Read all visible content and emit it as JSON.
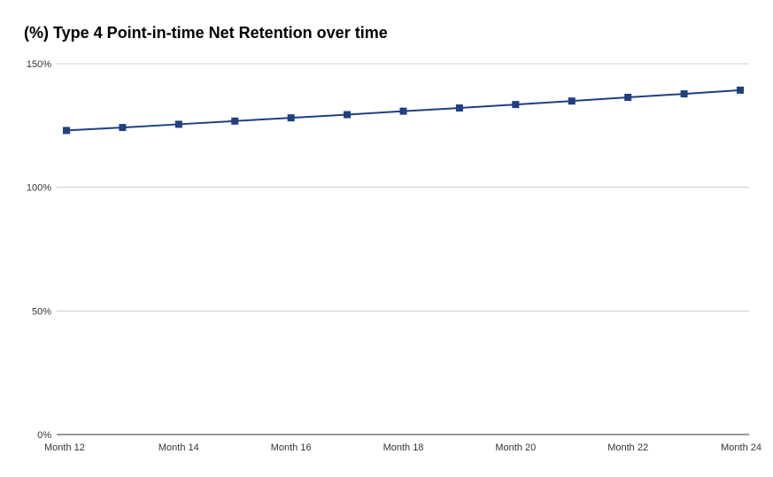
{
  "chart_data": {
    "type": "line",
    "title": "(%) Type 4 Point-in-time Net Retention over time",
    "xlabel": "",
    "ylabel": "",
    "ylim": [
      0,
      150
    ],
    "y_ticks": [
      {
        "value": 0,
        "label": "0%"
      },
      {
        "value": 50,
        "label": "50%"
      },
      {
        "value": 100,
        "label": "100%"
      },
      {
        "value": 150,
        "label": "150%"
      }
    ],
    "categories": [
      "Month 12",
      "Month 13",
      "Month 14",
      "Month 15",
      "Month 16",
      "Month 17",
      "Month 18",
      "Month 19",
      "Month 20",
      "Month 21",
      "Month 22",
      "Month 23",
      "Month 24"
    ],
    "x_tick_labels": [
      "Month 12",
      "Month 14",
      "Month 16",
      "Month 18",
      "Month 20",
      "Month 22",
      "Month 24"
    ],
    "series": [
      {
        "values": [
          123.0,
          124.2,
          125.5,
          126.8,
          128.1,
          129.4,
          130.8,
          132.1,
          133.5,
          134.9,
          136.4,
          137.8,
          139.3
        ],
        "color": "#1f3f7f",
        "marker": "square"
      }
    ],
    "grid": true,
    "legend": "none"
  }
}
